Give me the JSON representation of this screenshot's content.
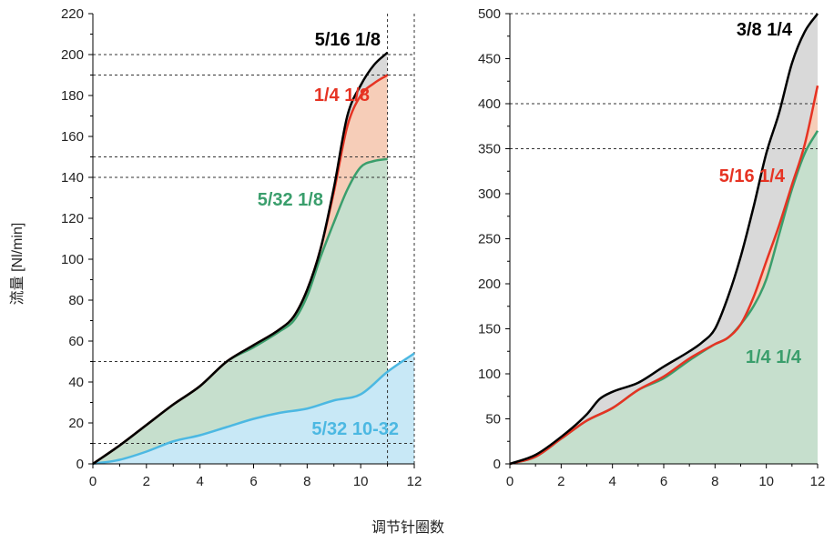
{
  "xlabel": "调节针圈数",
  "ylabel": "流量 [Nl/min]",
  "chart_data": [
    {
      "type": "area",
      "xlim": [
        0,
        12
      ],
      "ylim": [
        0,
        220
      ],
      "xticks": [
        0,
        2,
        4,
        6,
        8,
        10,
        12
      ],
      "yticks": [
        0,
        20,
        40,
        60,
        80,
        100,
        120,
        140,
        160,
        180,
        200,
        220
      ],
      "grid": false,
      "legend": "inline labels",
      "ref_hlines": [
        10,
        50,
        140,
        150,
        190,
        200
      ],
      "ref_vlines": [
        11,
        12
      ],
      "series": [
        {
          "name": "5/16 1/8",
          "color": "#000000",
          "fill": "#d9d9d9",
          "x": [
            0,
            1,
            2,
            3,
            4,
            5,
            6,
            7,
            7.5,
            8,
            8.5,
            9,
            9.5,
            10,
            10.5,
            11
          ],
          "y": [
            0,
            9,
            19,
            29,
            38,
            50,
            58,
            66,
            72,
            85,
            105,
            135,
            170,
            185,
            195,
            201
          ]
        },
        {
          "name": "1/4 1/8",
          "color": "#e63323",
          "fill": "#f6cdb8",
          "x": [
            0,
            1,
            2,
            3,
            4,
            5,
            6,
            7,
            7.5,
            8,
            8.5,
            9,
            9.5,
            10,
            10.5,
            11
          ],
          "y": [
            0,
            9,
            19,
            29,
            38,
            50,
            58,
            66,
            72,
            85,
            105,
            133,
            165,
            180,
            186,
            190
          ]
        },
        {
          "name": "5/32 1/8",
          "color": "#3a9e6c",
          "fill": "#c6dfcd",
          "x": [
            0,
            1,
            2,
            3,
            4,
            5,
            6,
            7,
            7.5,
            8,
            8.5,
            9,
            9.5,
            10,
            10.5,
            11
          ],
          "y": [
            0,
            9,
            19,
            29,
            38,
            50,
            57,
            65,
            70,
            82,
            101,
            118,
            134,
            145,
            148,
            149
          ]
        },
        {
          "name": "5/32 10-32",
          "color": "#4cb8e2",
          "fill": "#c8e8f6",
          "x": [
            0,
            1,
            2,
            3,
            4,
            5,
            6,
            7,
            8,
            9,
            10,
            11,
            12
          ],
          "y": [
            0,
            2,
            6,
            11,
            14,
            18,
            22,
            25,
            27,
            31,
            34,
            45,
            54
          ]
        }
      ]
    },
    {
      "type": "area",
      "xlim": [
        0,
        12
      ],
      "ylim": [
        0,
        500
      ],
      "xticks": [
        0,
        2,
        4,
        6,
        8,
        10,
        12
      ],
      "yticks": [
        0,
        50,
        100,
        150,
        200,
        250,
        300,
        350,
        400,
        450,
        500
      ],
      "grid": false,
      "legend": "inline labels",
      "ref_hlines": [
        350,
        400,
        500
      ],
      "ref_vlines": [],
      "series": [
        {
          "name": "3/8 1/4",
          "color": "#000000",
          "fill": "#d9d9d9",
          "x": [
            0,
            1,
            2,
            3,
            3.5,
            4,
            5,
            6,
            7,
            7.5,
            8,
            8.5,
            9,
            9.5,
            10,
            10.5,
            11,
            11.5,
            12
          ],
          "y": [
            0,
            10,
            30,
            55,
            72,
            80,
            90,
            108,
            125,
            135,
            150,
            185,
            230,
            285,
            345,
            390,
            445,
            480,
            500
          ]
        },
        {
          "name": "5/16 1/4",
          "color": "#e63323",
          "fill": "#f6cdb8",
          "x": [
            0,
            1,
            2,
            3,
            4,
            5,
            6,
            7,
            8,
            8.5,
            9,
            9.5,
            10,
            10.5,
            11,
            11.5,
            12
          ],
          "y": [
            0,
            8,
            28,
            48,
            62,
            82,
            97,
            117,
            133,
            140,
            155,
            185,
            225,
            265,
            310,
            355,
            420
          ]
        },
        {
          "name": "1/4 1/4",
          "color": "#3a9e6c",
          "fill": "#c6dfcd",
          "x": [
            0,
            1,
            2,
            3,
            4,
            5,
            6,
            7,
            8,
            8.5,
            9,
            9.5,
            10,
            10.5,
            11,
            11.5,
            12
          ],
          "y": [
            0,
            8,
            28,
            48,
            62,
            82,
            95,
            115,
            133,
            140,
            155,
            175,
            205,
            255,
            305,
            345,
            370
          ]
        }
      ]
    }
  ]
}
